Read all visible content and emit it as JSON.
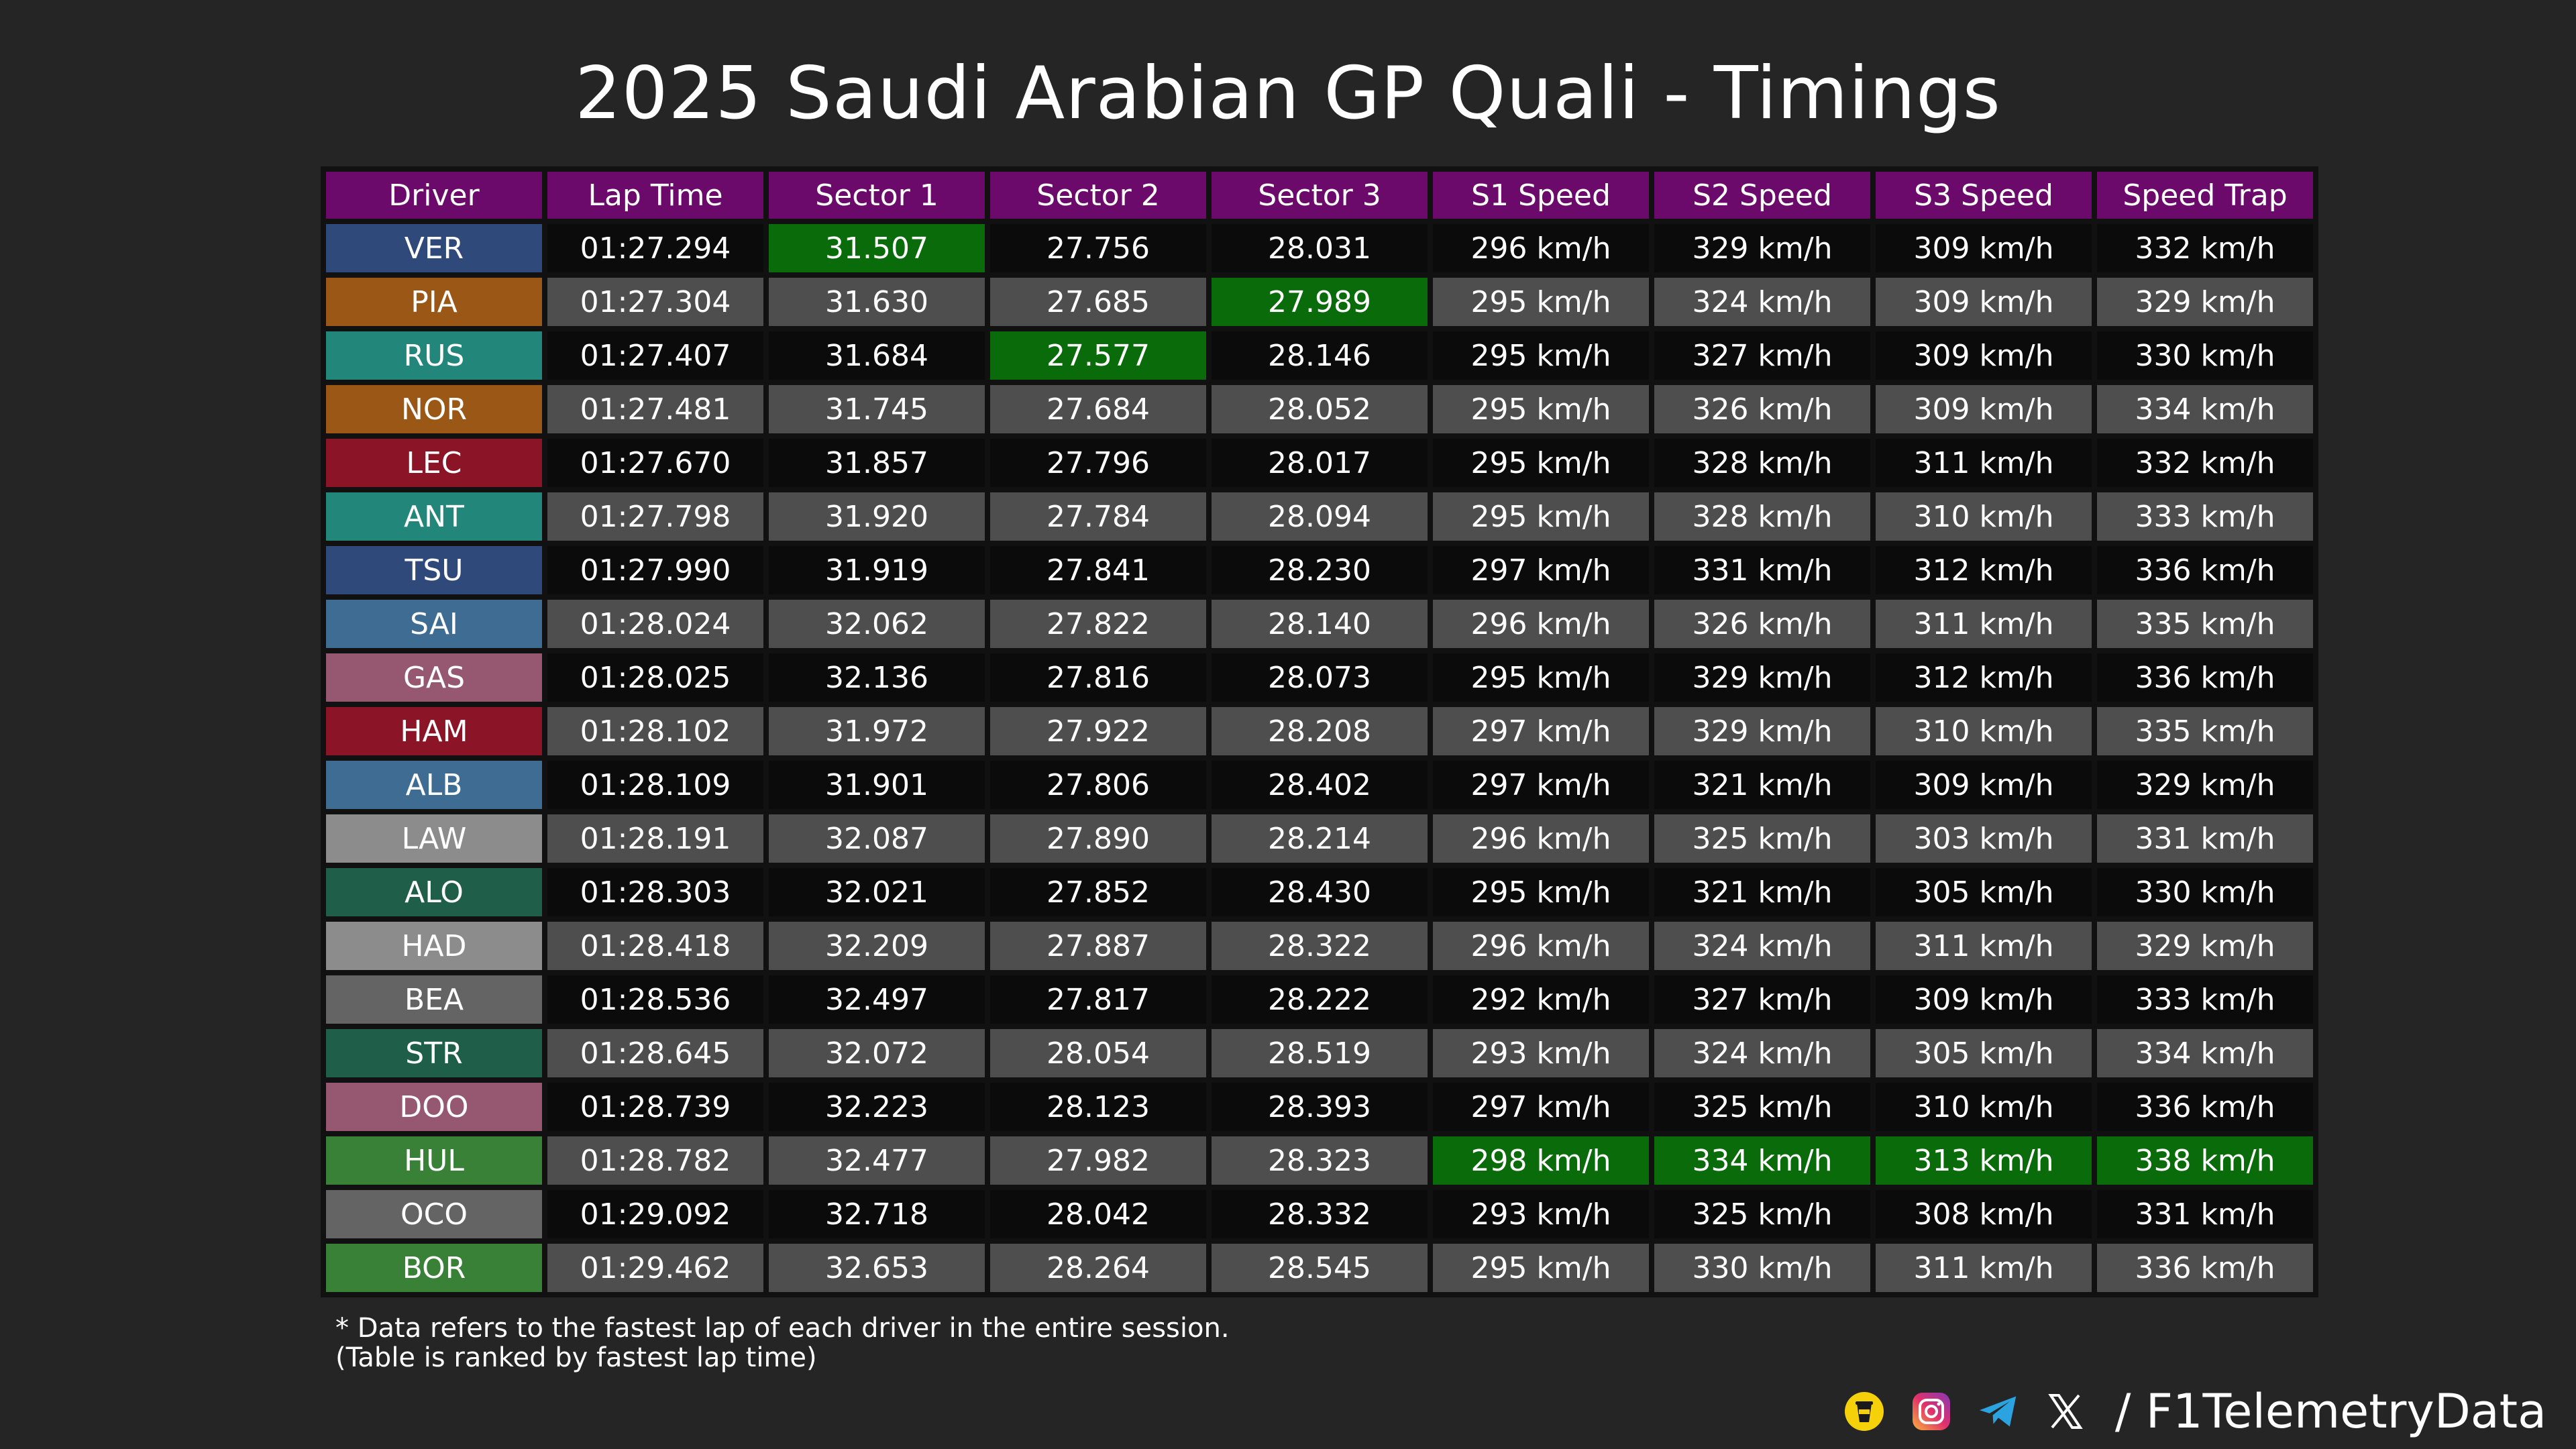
{
  "title": "2025 Saudi Arabian GP Quali - Timings",
  "watermark": "@F1TelemetryData",
  "chart_data": {
    "type": "table",
    "columns": [
      "Driver",
      "Lap Time",
      "Sector 1",
      "Sector 2",
      "Sector 3",
      "S1 Speed",
      "S2 Speed",
      "S3 Speed",
      "Speed Trap"
    ],
    "rows": [
      {
        "driver": "VER",
        "lap": "01:27.294",
        "s1": "31.507",
        "s2": "27.756",
        "s3": "28.031",
        "v1": "296 km/h",
        "v2": "329 km/h",
        "v3": "309 km/h",
        "trap": "332 km/h"
      },
      {
        "driver": "PIA",
        "lap": "01:27.304",
        "s1": "31.630",
        "s2": "27.685",
        "s3": "27.989",
        "v1": "295 km/h",
        "v2": "324 km/h",
        "v3": "309 km/h",
        "trap": "329 km/h"
      },
      {
        "driver": "RUS",
        "lap": "01:27.407",
        "s1": "31.684",
        "s2": "27.577",
        "s3": "28.146",
        "v1": "295 km/h",
        "v2": "327 km/h",
        "v3": "309 km/h",
        "trap": "330 km/h"
      },
      {
        "driver": "NOR",
        "lap": "01:27.481",
        "s1": "31.745",
        "s2": "27.684",
        "s3": "28.052",
        "v1": "295 km/h",
        "v2": "326 km/h",
        "v3": "309 km/h",
        "trap": "334 km/h"
      },
      {
        "driver": "LEC",
        "lap": "01:27.670",
        "s1": "31.857",
        "s2": "27.796",
        "s3": "28.017",
        "v1": "295 km/h",
        "v2": "328 km/h",
        "v3": "311 km/h",
        "trap": "332 km/h"
      },
      {
        "driver": "ANT",
        "lap": "01:27.798",
        "s1": "31.920",
        "s2": "27.784",
        "s3": "28.094",
        "v1": "295 km/h",
        "v2": "328 km/h",
        "v3": "310 km/h",
        "trap": "333 km/h"
      },
      {
        "driver": "TSU",
        "lap": "01:27.990",
        "s1": "31.919",
        "s2": "27.841",
        "s3": "28.230",
        "v1": "297 km/h",
        "v2": "331 km/h",
        "v3": "312 km/h",
        "trap": "336 km/h"
      },
      {
        "driver": "SAI",
        "lap": "01:28.024",
        "s1": "32.062",
        "s2": "27.822",
        "s3": "28.140",
        "v1": "296 km/h",
        "v2": "326 km/h",
        "v3": "311 km/h",
        "trap": "335 km/h"
      },
      {
        "driver": "GAS",
        "lap": "01:28.025",
        "s1": "32.136",
        "s2": "27.816",
        "s3": "28.073",
        "v1": "295 km/h",
        "v2": "329 km/h",
        "v3": "312 km/h",
        "trap": "336 km/h"
      },
      {
        "driver": "HAM",
        "lap": "01:28.102",
        "s1": "31.972",
        "s2": "27.922",
        "s3": "28.208",
        "v1": "297 km/h",
        "v2": "329 km/h",
        "v3": "310 km/h",
        "trap": "335 km/h"
      },
      {
        "driver": "ALB",
        "lap": "01:28.109",
        "s1": "31.901",
        "s2": "27.806",
        "s3": "28.402",
        "v1": "297 km/h",
        "v2": "321 km/h",
        "v3": "309 km/h",
        "trap": "329 km/h"
      },
      {
        "driver": "LAW",
        "lap": "01:28.191",
        "s1": "32.087",
        "s2": "27.890",
        "s3": "28.214",
        "v1": "296 km/h",
        "v2": "325 km/h",
        "v3": "303 km/h",
        "trap": "331 km/h"
      },
      {
        "driver": "ALO",
        "lap": "01:28.303",
        "s1": "32.021",
        "s2": "27.852",
        "s3": "28.430",
        "v1": "295 km/h",
        "v2": "321 km/h",
        "v3": "305 km/h",
        "trap": "330 km/h"
      },
      {
        "driver": "HAD",
        "lap": "01:28.418",
        "s1": "32.209",
        "s2": "27.887",
        "s3": "28.322",
        "v1": "296 km/h",
        "v2": "324 km/h",
        "v3": "311 km/h",
        "trap": "329 km/h"
      },
      {
        "driver": "BEA",
        "lap": "01:28.536",
        "s1": "32.497",
        "s2": "27.817",
        "s3": "28.222",
        "v1": "292 km/h",
        "v2": "327 km/h",
        "v3": "309 km/h",
        "trap": "333 km/h"
      },
      {
        "driver": "STR",
        "lap": "01:28.645",
        "s1": "32.072",
        "s2": "28.054",
        "s3": "28.519",
        "v1": "293 km/h",
        "v2": "324 km/h",
        "v3": "305 km/h",
        "trap": "334 km/h"
      },
      {
        "driver": "DOO",
        "lap": "01:28.739",
        "s1": "32.223",
        "s2": "28.123",
        "s3": "28.393",
        "v1": "297 km/h",
        "v2": "325 km/h",
        "v3": "310 km/h",
        "trap": "336 km/h"
      },
      {
        "driver": "HUL",
        "lap": "01:28.782",
        "s1": "32.477",
        "s2": "27.982",
        "s3": "28.323",
        "v1": "298 km/h",
        "v2": "334 km/h",
        "v3": "313 km/h",
        "trap": "338 km/h"
      },
      {
        "driver": "OCO",
        "lap": "01:29.092",
        "s1": "32.718",
        "s2": "28.042",
        "s3": "28.332",
        "v1": "293 km/h",
        "v2": "325 km/h",
        "v3": "308 km/h",
        "trap": "331 km/h"
      },
      {
        "driver": "BOR",
        "lap": "01:29.462",
        "s1": "32.653",
        "s2": "28.264",
        "s3": "28.545",
        "v1": "295 km/h",
        "v2": "330 km/h",
        "v3": "311 km/h",
        "trap": "336 km/h"
      }
    ],
    "best": {
      "s1": "VER",
      "s2": "RUS",
      "s3": "PIA",
      "v1": "HUL",
      "v2": "HUL",
      "v3": "HUL",
      "trap": "HUL"
    }
  },
  "team_colors": {
    "VER": "#2f4a7a",
    "PIA": "#9b5715",
    "RUS": "#22877a",
    "NOR": "#9b5715",
    "LEC": "#8b1526",
    "ANT": "#22877a",
    "TSU": "#2f4a7a",
    "SAI": "#3f6c93",
    "GAS": "#965870",
    "HAM": "#8b1526",
    "ALB": "#3f6c93",
    "LAW": "#8c8c8c",
    "ALO": "#1f5e48",
    "HAD": "#8c8c8c",
    "BEA": "#646464",
    "STR": "#1f5e48",
    "DOO": "#965870",
    "HUL": "#3a8138",
    "OCO": "#646464",
    "BOR": "#3a8138"
  },
  "colors": {
    "header": "#6b0a6b",
    "best": "#0a6b0a",
    "row_dark": "#0b0b0b",
    "row_light": "#4e4e4e",
    "background": "#252525"
  },
  "footnote": {
    "line1": "* Data refers to the fastest lap of each driver in the entire session.",
    "line2": "(Table is ranked by fastest lap time)"
  },
  "social": {
    "icons": [
      "buymeacoffee-icon",
      "instagram-icon",
      "telegram-icon",
      "x-icon"
    ],
    "handle": "/ F1TelemetryData"
  }
}
